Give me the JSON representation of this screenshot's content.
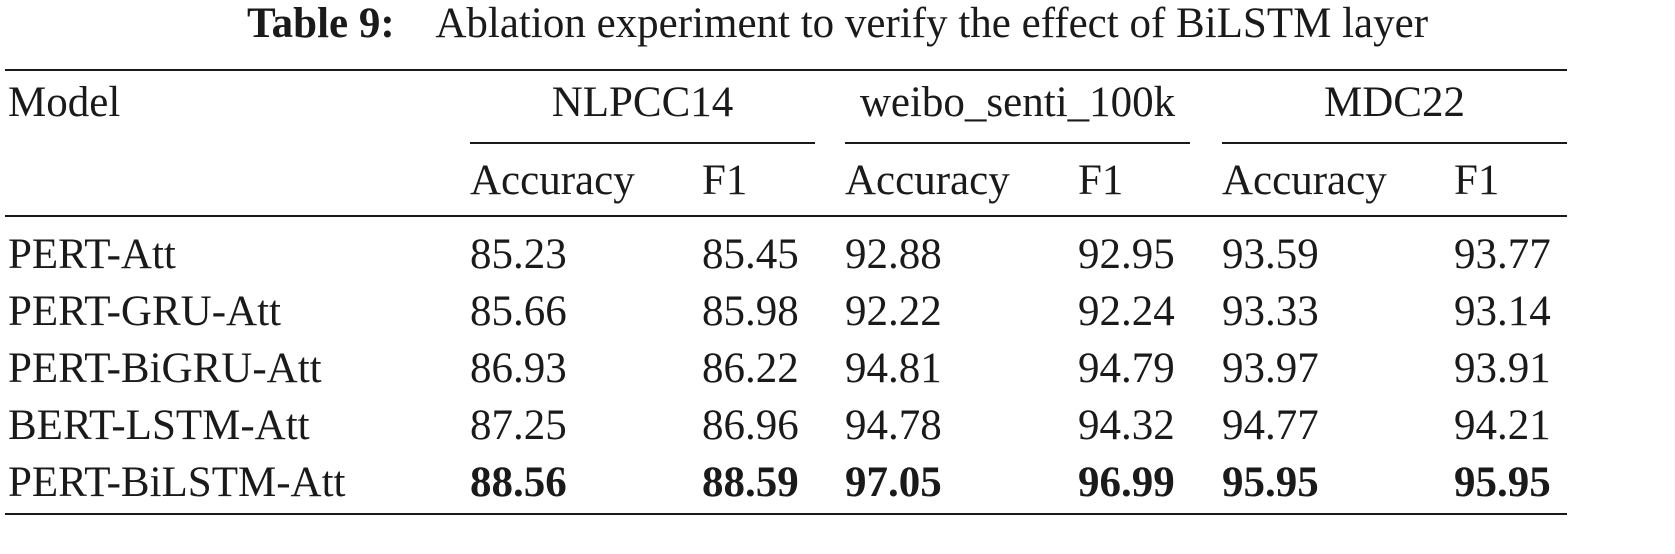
{
  "caption": {
    "label": "Table 9:",
    "text": "Ablation experiment to verify the effect of BiLSTM layer"
  },
  "header": {
    "model": "Model",
    "groups": [
      "NLPCC14",
      "weibo_senti_100k",
      "MDC22"
    ],
    "sub": [
      "Accuracy",
      "F1",
      "Accuracy",
      "F1",
      "Accuracy",
      "F1"
    ]
  },
  "rows": [
    {
      "model": "PERT-Att",
      "values": [
        "85.23",
        "85.45",
        "92.88",
        "92.95",
        "93.59",
        "93.77"
      ],
      "bold": false
    },
    {
      "model": "PERT-GRU-Att",
      "values": [
        "85.66",
        "85.98",
        "92.22",
        "92.24",
        "93.33",
        "93.14"
      ],
      "bold": false
    },
    {
      "model": "PERT-BiGRU-Att",
      "values": [
        "86.93",
        "86.22",
        "94.81",
        "94.79",
        "93.97",
        "93.91"
      ],
      "bold": false
    },
    {
      "model": "BERT-LSTM-Att",
      "values": [
        "87.25",
        "86.96",
        "94.78",
        "94.32",
        "94.77",
        "94.21"
      ],
      "bold": false
    },
    {
      "model": "PERT-BiLSTM-Att",
      "values": [
        "88.56",
        "88.59",
        "97.05",
        "96.99",
        "95.95",
        "95.95"
      ],
      "bold": true
    }
  ]
}
